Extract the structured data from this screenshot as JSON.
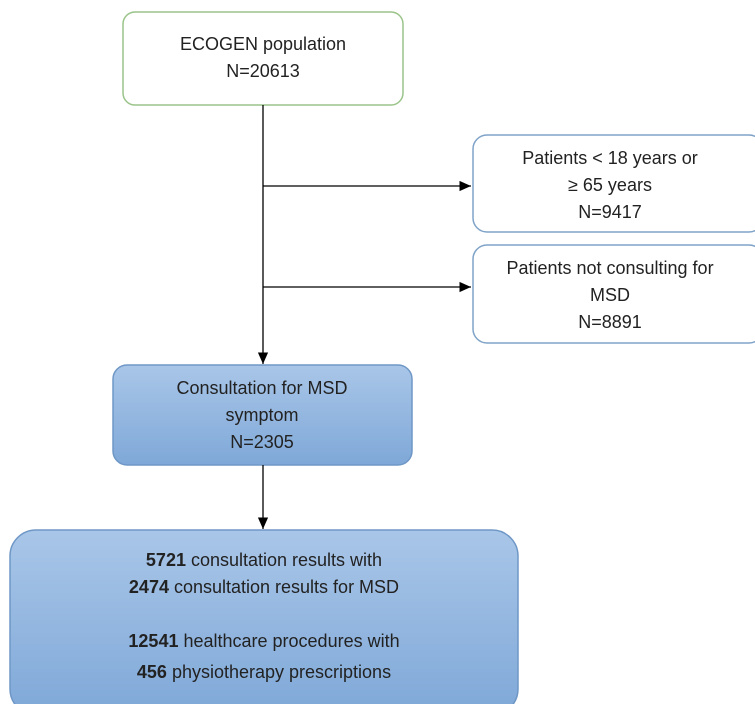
{
  "nodes": [
    {
      "lines": [
        "ECOGEN population",
        "N=20613"
      ]
    },
    {
      "lines": [
        "Patients < 18 years or",
        "≥ 65 years",
        "N=9417"
      ]
    },
    {
      "lines": [
        "Patients not consulting for",
        "MSD",
        "N=8891"
      ]
    },
    {
      "lines": [
        "Consultation for MSD",
        "symptom",
        "N=2305"
      ]
    },
    {
      "lines": [
        {
          "bold": "5721",
          "text": " consultation  results with"
        },
        {
          "bold": "2474",
          "text": " consultation results for MSD"
        },
        {
          "bold": "12541",
          "text": " healthcare procedures with"
        },
        {
          "bold": "456",
          "text": " physiotherapy prescriptions"
        }
      ]
    }
  ]
}
